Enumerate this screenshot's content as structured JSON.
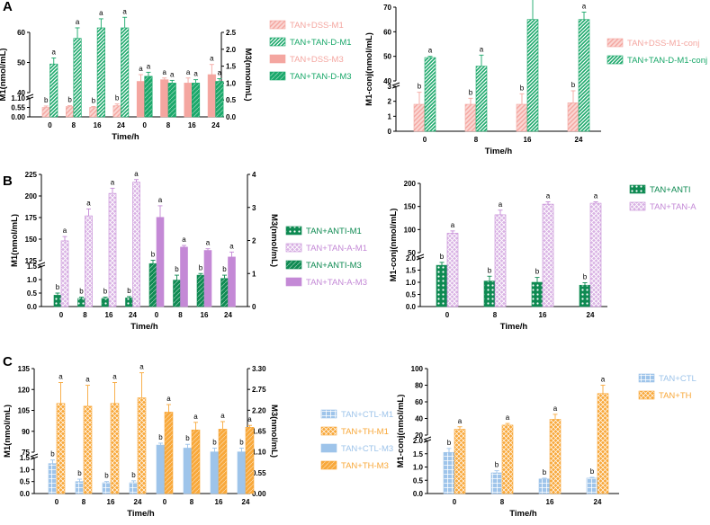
{
  "panel_labels": [
    "A",
    "B",
    "C"
  ],
  "chart_data": [
    {
      "id": "A-left",
      "type": "bar",
      "categories": [
        "0",
        "8",
        "16",
        "24",
        "0",
        "8",
        "16",
        "24"
      ],
      "xlabel": "Time/h",
      "ylabel": "M1(nmol/mL)",
      "ylabel_right": "M3(nmol/mL)",
      "left_lower_ticks": [
        "0.00",
        "0.55",
        "1.10"
      ],
      "left_upper_ticks": [
        "40",
        "50",
        "60"
      ],
      "right_ticks": [
        "0.0",
        "0.5",
        "1.0",
        "1.5",
        "2.0",
        "2.5"
      ],
      "series": [
        {
          "name": "TAN+DSS-M1",
          "color": "#f4a6a0",
          "pattern": "hatch-light",
          "axis": "M1",
          "positions": [
            0,
            1,
            2,
            3
          ],
          "values": [
            0.55,
            0.6,
            0.55,
            0.65
          ],
          "errors": [
            0.08,
            0.05,
            0.05,
            0.1
          ],
          "sig": [
            "b",
            "b",
            "b",
            "b"
          ]
        },
        {
          "name": "TAN+TAN-D-M1",
          "color": "#1aa86a",
          "pattern": "hatch-dense",
          "axis": "M1",
          "positions": [
            0,
            1,
            2,
            3
          ],
          "values": [
            49.5,
            58,
            61.5,
            61.5
          ],
          "errors": [
            2,
            3.5,
            3,
            3.5
          ],
          "sig": [
            "a",
            "a",
            "a",
            "a"
          ]
        },
        {
          "name": "TAN+DSS-M3",
          "color": "#f4a6a0",
          "pattern": "solid",
          "axis": "M3",
          "positions": [
            4,
            5,
            6,
            7
          ],
          "values": [
            1.05,
            1.1,
            1.0,
            1.25
          ],
          "errors": [
            0.2,
            0.05,
            0.15,
            0.3
          ],
          "sig": [
            "a",
            "a",
            "a",
            "a"
          ]
        },
        {
          "name": "TAN+TAN-D-M3",
          "color": "#1aa86a",
          "pattern": "solid-hatch",
          "axis": "M3",
          "positions": [
            4,
            5,
            6,
            7
          ],
          "values": [
            1.2,
            1.0,
            1.0,
            1.05
          ],
          "errors": [
            0.12,
            0.08,
            0.1,
            0.08
          ],
          "sig": [
            "a",
            "a",
            "a",
            "a"
          ]
        }
      ]
    },
    {
      "id": "A-right",
      "type": "bar",
      "categories": [
        "0",
        "8",
        "16",
        "24"
      ],
      "xlabel": "Time/h",
      "ylabel": "M1-conj(nmol/mL)",
      "lower_ticks": [
        "0",
        "1",
        "2",
        "3"
      ],
      "upper_ticks": [
        "40",
        "50",
        "60",
        "70"
      ],
      "series": [
        {
          "name": "TAN+DSS-M1-conj",
          "color": "#f4a6a0",
          "pattern": "hatch-light",
          "values": [
            1.8,
            1.8,
            1.8,
            1.9
          ],
          "errors": [
            0.8,
            0.4,
            0.7,
            0.8
          ],
          "sig": [
            "b",
            "b",
            "b",
            "b"
          ]
        },
        {
          "name": "TAN+TAN-D-M1-conj",
          "color": "#1aa86a",
          "pattern": "hatch-dense",
          "values": [
            49.5,
            46,
            65,
            65
          ],
          "errors": [
            0.5,
            4.5,
            10,
            3
          ],
          "sig": [
            "a",
            "a",
            "a",
            "a"
          ]
        }
      ]
    },
    {
      "id": "B-left",
      "type": "bar",
      "categories": [
        "0",
        "8",
        "16",
        "24",
        "0",
        "8",
        "16",
        "24"
      ],
      "xlabel": "Time/h",
      "ylabel": "M1(nmol/mL)",
      "ylabel_right": "M3(nmol/mL)",
      "left_lower_ticks": [
        "0.0",
        "0.5",
        "1.0",
        "1.5"
      ],
      "left_upper_ticks": [
        "125",
        "150",
        "175",
        "200",
        "225"
      ],
      "right_ticks": [
        "0",
        "1",
        "2",
        "3",
        "4"
      ],
      "series": [
        {
          "name": "TAN+ANTI-M1",
          "color": "#0e8a52",
          "pattern": "dots",
          "axis": "M1",
          "positions": [
            0,
            1,
            2,
            3
          ],
          "values": [
            0.42,
            0.3,
            0.3,
            0.32
          ],
          "errors": [
            0.08,
            0.05,
            0.05,
            0.05
          ],
          "sig": [
            "b",
            "b",
            "b",
            "b"
          ]
        },
        {
          "name": "TAN+TAN-A-M1",
          "color": "#c489d6",
          "pattern": "cross",
          "axis": "M1",
          "positions": [
            0,
            1,
            2,
            3
          ],
          "values": [
            148,
            177,
            203,
            216
          ],
          "errors": [
            5,
            8,
            6,
            3
          ],
          "sig": [
            "a",
            "a",
            "a",
            "a"
          ]
        },
        {
          "name": "TAN+ANTI-M3",
          "color": "#0e8a52",
          "pattern": "solid-hatch",
          "axis": "M3",
          "positions": [
            4,
            5,
            6,
            7
          ],
          "values": [
            1.3,
            0.8,
            0.95,
            0.85
          ],
          "errors": [
            0.1,
            0.15,
            0.05,
            0.1
          ],
          "sig": [
            "b",
            "b",
            "b",
            "b"
          ]
        },
        {
          "name": "TAN+TAN-A-M3",
          "color": "#c489d6",
          "pattern": "solid",
          "axis": "M3",
          "positions": [
            4,
            5,
            6,
            7
          ],
          "values": [
            2.7,
            1.8,
            1.7,
            1.5
          ],
          "errors": [
            0.35,
            0.05,
            0.05,
            0.15
          ],
          "sig": [
            "a",
            "a",
            "a",
            "a"
          ]
        }
      ]
    },
    {
      "id": "B-right",
      "type": "bar",
      "categories": [
        "0",
        "8",
        "16",
        "24"
      ],
      "xlabel": "Time/h",
      "ylabel": "M1-conj(nmol/mL)",
      "lower_ticks": [
        "0.0",
        "0.5",
        "1.0",
        "1.5",
        "2.0"
      ],
      "upper_ticks": [
        "50",
        "100",
        "150",
        "200"
      ],
      "series": [
        {
          "name": "TAN+ANTI",
          "color": "#0e8a52",
          "pattern": "dots",
          "values": [
            1.7,
            1.05,
            1.0,
            0.88
          ],
          "errors": [
            0.12,
            0.2,
            0.2,
            0.1
          ],
          "sig": [
            "b",
            "b",
            "b",
            "b"
          ]
        },
        {
          "name": "TAN+TAN-A",
          "color": "#c489d6",
          "pattern": "cross",
          "values": [
            92,
            132,
            155,
            157
          ],
          "errors": [
            5,
            10,
            5,
            3
          ],
          "sig": [
            "a",
            "a",
            "a",
            "a"
          ]
        }
      ]
    },
    {
      "id": "C-left",
      "type": "bar",
      "categories": [
        "0",
        "8",
        "16",
        "24",
        "0",
        "8",
        "16",
        "24"
      ],
      "xlabel": "Time/h",
      "ylabel": "M1(nmol/mL)",
      "ylabel_right": "M3(nmol/mL)",
      "left_lower_ticks": [
        "0.0",
        "0.5",
        "1.0",
        "1.5"
      ],
      "left_upper_ticks": [
        "75",
        "90",
        "105",
        "120",
        "135"
      ],
      "right_ticks": [
        "0.00",
        "0.55",
        "1.10",
        "1.65",
        "2.20",
        "2.75",
        "3.30"
      ],
      "series": [
        {
          "name": "TAN+CTL-M1",
          "color": "#9ec4ea",
          "pattern": "checker",
          "axis": "M1",
          "positions": [
            0,
            1,
            2,
            3
          ],
          "values": [
            1.25,
            0.5,
            0.45,
            0.45
          ],
          "errors": [
            0.15,
            0.1,
            0.05,
            0.08
          ],
          "sig": [
            "b",
            "b",
            "b",
            "b"
          ]
        },
        {
          "name": "TAN+TH-M1",
          "color": "#f8a83a",
          "pattern": "diag-cross",
          "axis": "M1",
          "positions": [
            0,
            1,
            2,
            3
          ],
          "values": [
            110,
            108,
            110,
            114
          ],
          "errors": [
            15,
            15,
            15,
            18
          ],
          "sig": [
            "a",
            "a",
            "a",
            "a"
          ]
        },
        {
          "name": "TAN+CTL-M3",
          "color": "#9ec4ea",
          "pattern": "solid",
          "axis": "M3",
          "positions": [
            4,
            5,
            6,
            7
          ],
          "values": [
            1.28,
            1.2,
            1.1,
            1.1
          ],
          "errors": [
            0.05,
            0.1,
            0.1,
            0.1
          ],
          "sig": [
            "b",
            "b",
            "b",
            "b"
          ]
        },
        {
          "name": "TAN+TH-M3",
          "color": "#f8a83a",
          "pattern": "solid-hatch",
          "axis": "M3",
          "positions": [
            4,
            5,
            6,
            7
          ],
          "values": [
            2.15,
            1.68,
            1.7,
            1.75
          ],
          "errors": [
            0.2,
            0.2,
            0.2,
            0.05
          ],
          "sig": [
            "a",
            "a",
            "a",
            "a"
          ]
        }
      ]
    },
    {
      "id": "C-right",
      "type": "bar",
      "categories": [
        "0",
        "8",
        "16",
        "24"
      ],
      "xlabel": "Time/h",
      "ylabel": "M1-conj(nmol/mL)",
      "lower_ticks": [
        "0.0",
        "0.5",
        "1.0",
        "1.5",
        "2.0"
      ],
      "upper_ticks": [
        "20",
        "40",
        "60",
        "80",
        "100"
      ],
      "series": [
        {
          "name": "TAN+CTL",
          "color": "#9ec4ea",
          "pattern": "checker",
          "values": [
            1.55,
            0.78,
            0.55,
            0.58
          ],
          "errors": [
            0.15,
            0.08,
            0.03,
            0.03
          ],
          "sig": [
            "b",
            "b",
            "b",
            "b"
          ]
        },
        {
          "name": "TAN+TH",
          "color": "#f8a83a",
          "pattern": "diag-cross",
          "values": [
            27,
            32,
            39,
            70
          ],
          "errors": [
            3,
            2,
            6,
            10
          ],
          "sig": [
            "a",
            "a",
            "a",
            "a"
          ]
        }
      ]
    }
  ]
}
